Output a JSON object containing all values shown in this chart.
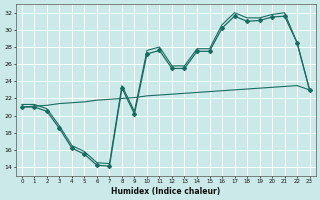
{
  "xlabel": "Humidex (Indice chaleur)",
  "xlim": [
    -0.5,
    23.5
  ],
  "ylim": [
    13.0,
    33.0
  ],
  "yticks": [
    14,
    16,
    18,
    20,
    22,
    24,
    26,
    28,
    30,
    32
  ],
  "xticks": [
    0,
    1,
    2,
    3,
    4,
    5,
    6,
    7,
    8,
    9,
    10,
    11,
    12,
    13,
    14,
    15,
    16,
    17,
    18,
    19,
    20,
    21,
    22,
    23
  ],
  "bg_color": "#cce9e9",
  "line_color": "#1a6b60",
  "grid_color": "#ffffff",
  "series_main_x": [
    0,
    1,
    2,
    3,
    4,
    5,
    6,
    7,
    8,
    9,
    10,
    11,
    12,
    13,
    14,
    15,
    16,
    17,
    18,
    19,
    20,
    21,
    22,
    23
  ],
  "series_main_y": [
    21.0,
    21.0,
    20.5,
    18.5,
    16.2,
    15.5,
    14.2,
    14.1,
    23.2,
    20.2,
    27.2,
    27.6,
    25.5,
    25.5,
    27.5,
    27.5,
    30.2,
    31.6,
    31.0,
    31.1,
    31.5,
    31.6,
    28.5,
    23.0
  ],
  "series_env_x": [
    0,
    1,
    2,
    3,
    4,
    5,
    6,
    7,
    8,
    9,
    10,
    11,
    12,
    13,
    14,
    15,
    16,
    17,
    18,
    19,
    20,
    21,
    22,
    23
  ],
  "series_env_y": [
    21.3,
    21.3,
    20.8,
    18.8,
    16.5,
    15.8,
    14.5,
    14.4,
    23.5,
    20.5,
    27.6,
    28.0,
    25.8,
    25.8,
    27.8,
    27.8,
    30.6,
    32.0,
    31.4,
    31.4,
    31.8,
    32.0,
    28.5,
    23.0
  ],
  "series_diag_x": [
    0,
    1,
    2,
    3,
    4,
    5,
    6,
    7,
    8,
    9,
    10,
    11,
    12,
    13,
    14,
    15,
    16,
    17,
    18,
    19,
    20,
    21,
    22,
    23
  ],
  "series_diag_y": [
    21.0,
    21.1,
    21.2,
    21.4,
    21.5,
    21.6,
    21.8,
    21.9,
    22.0,
    22.1,
    22.3,
    22.4,
    22.5,
    22.6,
    22.7,
    22.8,
    22.9,
    23.0,
    23.1,
    23.2,
    23.3,
    23.4,
    23.5,
    23.0
  ]
}
